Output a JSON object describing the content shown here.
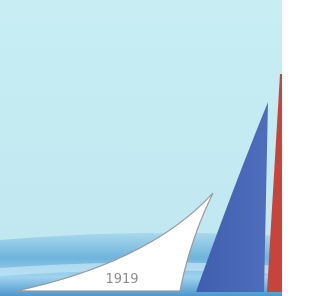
{
  "image": {
    "label": "1919"
  }
}
